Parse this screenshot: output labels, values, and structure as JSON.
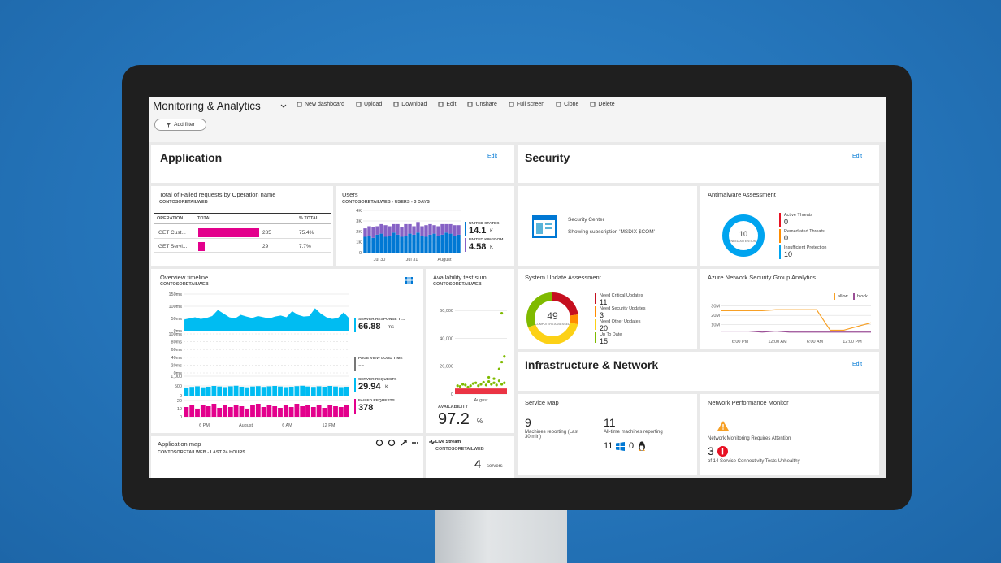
{
  "header": {
    "title": "Monitoring & Analytics",
    "actions": [
      "New dashboard",
      "Upload",
      "Download",
      "Edit",
      "Unshare",
      "Full screen",
      "Clone",
      "Delete"
    ],
    "filter": "Add filter"
  },
  "sections": {
    "application": {
      "title": "Application",
      "edit": "Edit"
    },
    "security": {
      "title": "Security",
      "edit": "Edit"
    },
    "infrastructure": {
      "title": "Infrastructure & Network",
      "edit": "Edit"
    }
  },
  "failed_requests": {
    "title": "Total of Failed requests by Operation name",
    "subtitle": "CONTOSORETAILWEB",
    "columns": [
      "OPERATION ...",
      "TOTAL",
      "% TOTAL"
    ],
    "color": "#e3008c",
    "rows": [
      {
        "name": "GET Cust...",
        "total": 285,
        "pct": "75.4%"
      },
      {
        "name": "GET Servi...",
        "total": 29,
        "pct": "7.7%"
      }
    ]
  },
  "users": {
    "title": "Users",
    "subtitle": "CONTOSORETAILWEB - USERS - 3 DAYS",
    "ylim": [
      0,
      4000
    ],
    "yticks": [
      {
        "value": 4000,
        "label": "4K"
      },
      {
        "value": 3000,
        "label": "3K"
      },
      {
        "value": 2000,
        "label": "2K"
      },
      {
        "value": 1000,
        "label": "1K"
      },
      0
    ],
    "xticks": [
      "Jul 30",
      "Jul 31",
      "August"
    ],
    "series": [
      {
        "name": "UNITED STATES",
        "total": 14.1,
        "unit": "K",
        "color": "#0078d4",
        "values": [
          1500,
          1600,
          1400,
          1700,
          1800,
          1500,
          1600,
          1900,
          1700,
          1500,
          1600,
          1800,
          1700,
          1900,
          1600,
          1500,
          1700,
          1800,
          1600,
          1700,
          1900,
          1800,
          1600,
          1700
        ]
      },
      {
        "name": "UNITED KINGDOM",
        "total": 4.58,
        "unit": "K",
        "color": "#8661c5",
        "values": [
          800,
          900,
          1000,
          800,
          900,
          1100,
          900,
          800,
          1000,
          900,
          1100,
          900,
          800,
          1000,
          900,
          1100,
          1000,
          800,
          900,
          1000,
          800,
          900,
          1000,
          900
        ]
      }
    ]
  },
  "timeline": {
    "title": "Overview timeline",
    "subtitle": "CONTOSORETAILWEB",
    "xticks": [
      "6 PM",
      "August",
      "6 AM",
      "12 PM"
    ],
    "response": {
      "name": "SERVER RESPONSE TI...",
      "total": 66.88,
      "unit": "ms",
      "color": "#00bcf2",
      "ylim": [
        0,
        160
      ],
      "yticks": [
        {
          "value": 150,
          "label": "150ms"
        },
        {
          "value": 100,
          "label": "100ms"
        },
        {
          "value": 50,
          "label": "50ms"
        },
        {
          "value": 0,
          "label": "0ms"
        }
      ],
      "values": [
        45,
        50,
        55,
        48,
        52,
        60,
        85,
        70,
        55,
        50,
        65,
        58,
        52,
        60,
        55,
        50,
        58,
        62,
        55,
        80,
        65,
        58,
        60,
        92,
        70,
        55,
        48,
        52,
        75,
        50
      ]
    },
    "pageview": {
      "name": "PAGE VIEW LOAD TIME",
      "total": "--",
      "color": "#777777",
      "ylim": [
        0,
        100
      ],
      "yticks": [
        {
          "value": 100,
          "label": "100ms"
        },
        {
          "value": 80,
          "label": "80ms"
        },
        {
          "value": 60,
          "label": "60ms"
        },
        {
          "value": 40,
          "label": "40ms"
        },
        {
          "value": 20,
          "label": "20ms"
        },
        {
          "value": 0,
          "label": "0ms"
        }
      ]
    },
    "requests": {
      "name": "SERVER REQUESTS",
      "total": 29.94,
      "unit": "K",
      "color": "#00bcf2",
      "ylim": [
        0,
        1000
      ],
      "yticks": [
        {
          "value": 1000,
          "label": "1,000"
        },
        500,
        0
      ],
      "values": [
        420,
        450,
        480,
        430,
        460,
        500,
        470,
        440,
        480,
        510,
        460,
        430,
        470,
        490,
        450,
        480,
        500,
        470,
        440,
        460,
        490,
        510,
        470,
        450,
        480,
        460,
        500,
        470,
        440,
        460
      ]
    },
    "failed": {
      "name": "FAILED REQUESTS",
      "total": 378,
      "color": "#e3008c",
      "ylim": [
        0,
        20
      ],
      "yticks": [
        20,
        10,
        0
      ],
      "values": [
        12,
        14,
        10,
        15,
        13,
        16,
        11,
        14,
        12,
        15,
        13,
        10,
        14,
        16,
        12,
        15,
        13,
        11,
        14,
        12,
        16,
        13,
        15,
        12,
        14,
        11,
        15,
        13,
        12,
        14
      ]
    }
  },
  "availability": {
    "title": "Availability test sum...",
    "subtitle": "CONTOSORETAILWEB",
    "ylim": [
      0,
      70000
    ],
    "xlim": [
      0,
      10
    ],
    "yticks": [
      {
        "value": 60000,
        "label": "60,000"
      },
      {
        "value": 40000,
        "label": "40,000"
      },
      {
        "value": 20000,
        "label": "20,000"
      },
      0
    ],
    "xticks": [
      "August"
    ],
    "label": "AVAILABILITY",
    "total": 97.2,
    "unit": "%",
    "color": "#7fba00",
    "x": [
      0.5,
      1,
      1.5,
      2,
      2.5,
      3,
      3.5,
      4,
      4.5,
      5,
      5.5,
      6,
      6.5,
      7,
      7.5,
      8,
      8.5,
      9,
      9.5,
      6.5,
      8.5,
      9,
      9.5,
      7.5,
      9
    ],
    "values": [
      6000,
      5500,
      7000,
      6500,
      5000,
      6000,
      7500,
      8000,
      6000,
      7000,
      8500,
      6500,
      9000,
      7000,
      8000,
      6500,
      9500,
      7000,
      8000,
      12000,
      18000,
      23000,
      27000,
      11000,
      58000
    ]
  },
  "app_map": {
    "title": "Application map",
    "subtitle": "CONTOSORETAILWEB - LAST 24 HOURS"
  },
  "live_stream": {
    "title": "Live Stream",
    "subtitle": "CONTOSORETAILWEB",
    "count": 4,
    "unit": "servers"
  },
  "security_center": {
    "title": "Security Center",
    "text": "Showing subscription 'MSDIX $COM'"
  },
  "antimalware": {
    "title": "Antimalware Assessment",
    "center_value": 10,
    "center_label": "NEED ATTENTION",
    "items": [
      {
        "name": "Active Threats",
        "value": 0,
        "color": "#e81123"
      },
      {
        "name": "Remediated Threats",
        "value": 0,
        "color": "#ff8c00"
      },
      {
        "name": "Insufficient Protection",
        "value": 10,
        "color": "#00a4ef"
      }
    ]
  },
  "system_update": {
    "title": "System Update Assessment",
    "center_value": 49,
    "center_label": "COMPUTERS ASSESSED",
    "items": [
      {
        "name": "Need Critical Updates",
        "value": 11,
        "color": "#c50f1f"
      },
      {
        "name": "Need Security Updates",
        "value": 3,
        "color": "#ff8c00"
      },
      {
        "name": "Need Other Updates",
        "value": 20,
        "color": "#fcd116"
      },
      {
        "name": "Up To Date",
        "value": 15,
        "color": "#7fba00"
      }
    ]
  },
  "nsg": {
    "title": "Azure Network Security Group Analytics",
    "ylim": [
      0,
      35
    ],
    "yticks": [
      {
        "value": 30,
        "label": "30M"
      },
      {
        "value": 20,
        "label": "20M"
      },
      {
        "value": 10,
        "label": "10M"
      }
    ],
    "xticks": [
      "6:00 PM",
      "12:00 AM",
      "6:00 AM",
      "12:00 PM"
    ],
    "series": [
      {
        "name": "allow",
        "color": "#f7a025",
        "values": [
          25,
          25,
          25,
          25,
          26,
          26,
          26,
          26,
          4,
          4,
          8,
          12
        ]
      },
      {
        "name": "block",
        "color": "#9b4f96",
        "values": [
          3,
          3,
          3,
          2,
          3,
          2,
          2,
          2,
          2,
          2,
          2,
          2
        ]
      }
    ]
  },
  "service_map": {
    "title": "Service Map",
    "reporting": 9,
    "reporting_label": "Machines reporting (Last 30 min)",
    "all_time": 11,
    "all_time_label": "All-time machines reporting",
    "windows": 11,
    "linux": 0
  },
  "npm": {
    "title": "Network Performance Monitor",
    "warning": "Network Monitoring Requires Attention",
    "unhealthy": 3,
    "unhealthy_label": "of 14 Service Connectivity Tests Unhealthy"
  }
}
